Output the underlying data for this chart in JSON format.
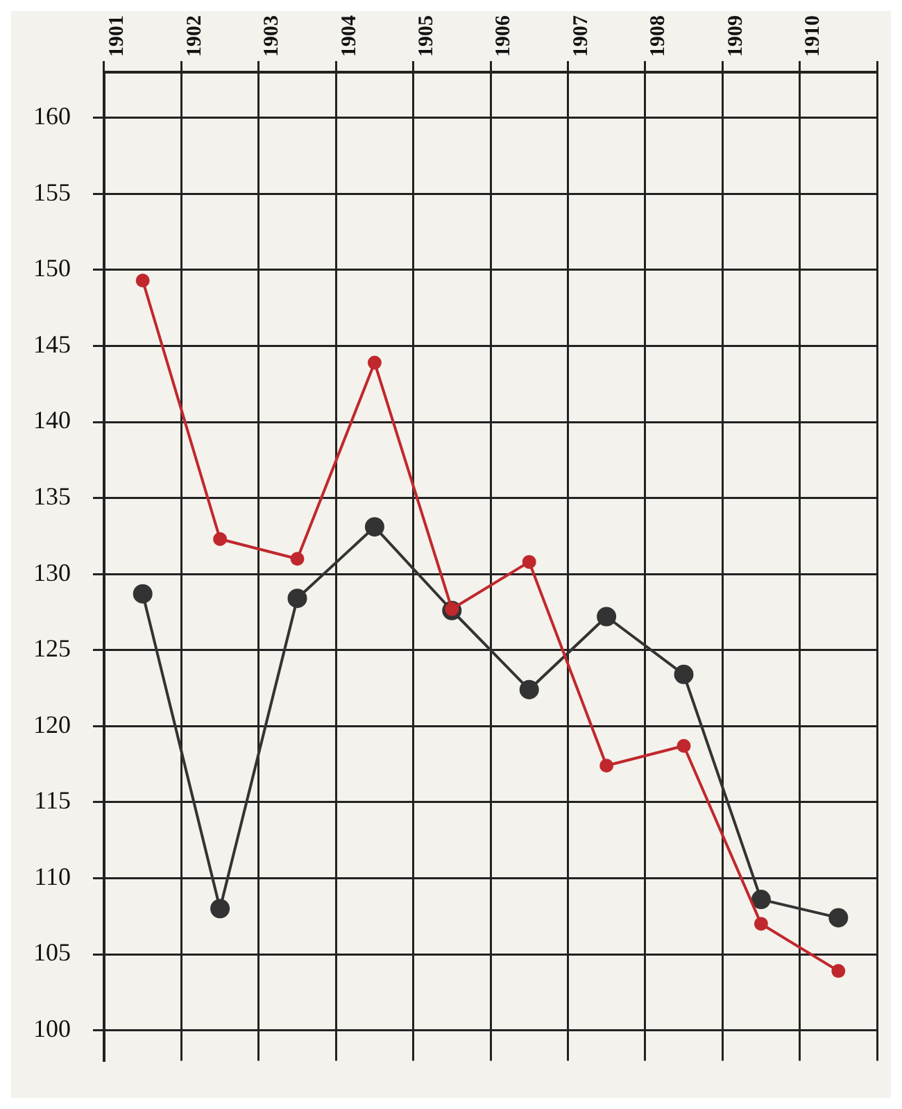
{
  "chart_data": {
    "type": "line",
    "categories": [
      "1901",
      "1902",
      "1903",
      "1904",
      "1905",
      "1906",
      "1907",
      "1908",
      "1909",
      "1910"
    ],
    "series": [
      {
        "color": "#c0282d",
        "values": [
          149.3,
          132.3,
          131.0,
          143.9,
          127.7,
          130.8,
          117.4,
          118.7,
          107.0,
          103.9
        ]
      },
      {
        "color": "#333333",
        "values": [
          128.7,
          108.0,
          128.4,
          133.1,
          127.6,
          122.4,
          127.2,
          123.4,
          108.6,
          107.4
        ]
      }
    ],
    "ylim": [
      98,
      163
    ],
    "yticks": [
      100,
      105,
      110,
      115,
      120,
      125,
      130,
      135,
      140,
      145,
      150,
      155,
      160
    ],
    "grid": true,
    "legend": false,
    "marker": "circle",
    "line_style": "solid"
  }
}
